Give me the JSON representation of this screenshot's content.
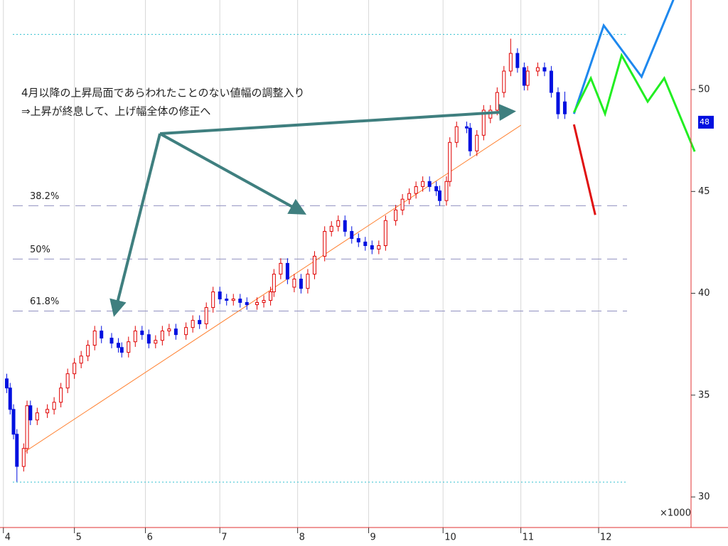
{
  "chart_data": {
    "type": "candlestick",
    "annotations": [
      "4月以降の上昇局面であらわれたことのない値幅の調整入り",
      "⇒上昇が終息して、上げ幅全体の修正へ"
    ],
    "unit_label": "×1000",
    "xlim": [
      -1,
      205
    ],
    "ylim": [
      28.5,
      54.4
    ],
    "xticks": [
      {
        "value": 0,
        "label": "4"
      },
      {
        "value": 21,
        "label": "5"
      },
      {
        "value": 42,
        "label": "6"
      },
      {
        "value": 64,
        "label": "7"
      },
      {
        "value": 87,
        "label": "8"
      },
      {
        "value": 108,
        "label": "9"
      },
      {
        "value": 130,
        "label": "10"
      },
      {
        "value": 153,
        "label": "11"
      },
      {
        "value": 176,
        "label": "12"
      }
    ],
    "yticks": [
      30,
      35,
      40,
      45,
      50
    ],
    "candles": {
      "up_color": "#e00000",
      "down_color": "#0010e0",
      "x": [
        1,
        2,
        3,
        4,
        6,
        7,
        8,
        10,
        13,
        15,
        17,
        19,
        21,
        23,
        25,
        27,
        29,
        32,
        34,
        35,
        37,
        39,
        41,
        43,
        45,
        47,
        49,
        51,
        54,
        56,
        58,
        60,
        62,
        64,
        66,
        68,
        70,
        72,
        75,
        77,
        79,
        80,
        82,
        84,
        86,
        88,
        90,
        92,
        95,
        97,
        99,
        101,
        103,
        105,
        107,
        109,
        111,
        113,
        116,
        118,
        120,
        122,
        124,
        126,
        128,
        129,
        131,
        132,
        134,
        137,
        138,
        140,
        142,
        144,
        146,
        148,
        150,
        152,
        154,
        155,
        158,
        160,
        162,
        164,
        166
      ],
      "open": [
        35.8,
        35.35,
        34.3,
        33.08,
        31.5,
        32.38,
        34.48,
        33.78,
        34.13,
        34.3,
        34.65,
        35.35,
        36.05,
        36.57,
        36.92,
        37.45,
        38.15,
        37.8,
        37.55,
        37.34,
        37.1,
        37.62,
        38.15,
        37.97,
        37.55,
        37.69,
        38.15,
        38.25,
        37.97,
        38.32,
        38.67,
        38.5,
        39.3,
        40.07,
        39.72,
        39.65,
        39.72,
        39.55,
        39.44,
        39.55,
        39.65,
        40.07,
        40.94,
        41.47,
        40.3,
        40.7,
        40.24,
        40.94,
        41.82,
        43.04,
        43.29,
        43.57,
        43.04,
        42.69,
        42.52,
        42.34,
        42.17,
        42.34,
        43.57,
        44.09,
        44.62,
        44.9,
        45.24,
        45.49,
        45.24,
        45.03,
        44.55,
        45.49,
        47.41,
        48.18,
        48.11,
        46.99,
        47.76,
        48.6,
        48.99,
        49.86,
        50.91,
        51.78,
        51.08,
        50.21,
        50.91,
        51.08,
        50.91,
        49.86,
        49.4
      ],
      "high": [
        36.05,
        35.6,
        34.55,
        33.33,
        32.63,
        34.73,
        34.73,
        34.38,
        34.55,
        34.9,
        35.6,
        36.3,
        36.82,
        37.17,
        37.7,
        38.4,
        38.4,
        38.05,
        37.8,
        37.59,
        37.87,
        38.4,
        38.4,
        38.22,
        37.94,
        38.4,
        38.5,
        38.5,
        38.57,
        38.92,
        38.92,
        39.55,
        40.32,
        40.32,
        39.97,
        39.97,
        39.97,
        39.8,
        39.8,
        39.9,
        40.32,
        41.19,
        41.72,
        41.72,
        40.95,
        40.95,
        41.19,
        42.07,
        43.29,
        43.54,
        43.82,
        43.82,
        43.29,
        42.94,
        42.77,
        42.59,
        42.59,
        43.82,
        44.34,
        44.87,
        45.15,
        45.49,
        45.74,
        45.74,
        45.49,
        45.28,
        45.74,
        47.66,
        48.43,
        48.43,
        48.36,
        48.01,
        49.24,
        49.24,
        50.11,
        51.16,
        52.5,
        52.03,
        51.33,
        51.16,
        51.33,
        51.33,
        51.16,
        50.11,
        49.9
      ],
      "low": [
        35.1,
        34.05,
        32.83,
        30.75,
        31.25,
        32.13,
        33.53,
        33.53,
        33.88,
        34.05,
        34.4,
        35.1,
        35.8,
        36.32,
        36.67,
        37.2,
        37.55,
        37.3,
        37.09,
        36.85,
        36.85,
        37.37,
        37.72,
        37.3,
        37.3,
        37.44,
        37.9,
        37.72,
        37.72,
        38.07,
        38.25,
        38.25,
        39.05,
        39.47,
        39.4,
        39.4,
        39.3,
        39.19,
        39.19,
        39.3,
        39.4,
        39.82,
        40.69,
        40.45,
        40.05,
        39.99,
        39.99,
        40.69,
        41.57,
        42.79,
        43.04,
        42.79,
        42.44,
        42.27,
        42.09,
        41.92,
        41.92,
        42.09,
        43.32,
        43.84,
        44.37,
        44.65,
        44.99,
        44.99,
        44.78,
        44.3,
        44.3,
        45.24,
        47.16,
        47.86,
        46.74,
        46.74,
        47.51,
        48.35,
        48.74,
        49.61,
        50.66,
        50.83,
        49.96,
        49.96,
        50.66,
        50.66,
        49.61,
        48.56,
        48.56
      ],
      "close": [
        35.35,
        34.3,
        33.08,
        31.5,
        32.38,
        34.48,
        33.78,
        34.13,
        34.3,
        34.65,
        35.35,
        36.05,
        36.57,
        36.92,
        37.45,
        38.15,
        37.8,
        37.55,
        37.34,
        37.1,
        37.62,
        38.15,
        37.97,
        37.55,
        37.69,
        38.15,
        38.25,
        37.97,
        38.32,
        38.67,
        38.5,
        39.3,
        40.07,
        39.72,
        39.65,
        39.72,
        39.55,
        39.44,
        39.55,
        39.65,
        40.07,
        40.94,
        41.47,
        40.7,
        40.7,
        40.24,
        40.94,
        41.82,
        43.04,
        43.29,
        43.57,
        43.04,
        42.69,
        42.52,
        42.34,
        42.17,
        42.34,
        43.57,
        44.09,
        44.62,
        44.9,
        45.24,
        45.49,
        45.24,
        45.03,
        44.55,
        45.49,
        47.41,
        48.18,
        48.11,
        46.99,
        47.76,
        48.99,
        48.99,
        49.86,
        50.91,
        51.78,
        51.08,
        50.21,
        50.91,
        51.08,
        50.91,
        49.86,
        48.81,
        48.81
      ]
    },
    "series": [
      {
        "color": "#1e88ee",
        "x": [
          168.7,
          177.5,
          188.7,
          198.1
        ],
        "values": [
          48.81,
          53.15,
          50.63,
          54.41
        ]
      },
      {
        "color": "#22ee22",
        "x": [
          168.7,
          173.7,
          177.9,
          182.8,
          190.5,
          195.4,
          204.4
        ],
        "values": [
          48.88,
          50.56,
          48.81,
          51.68,
          49.41,
          50.56,
          46.96
        ]
      },
      {
        "color": "#e01010",
        "x": [
          168.7,
          175.0
        ],
        "values": [
          48.29,
          43.85
        ]
      }
    ],
    "trendline": {
      "color": "#ff8030",
      "x": [
        5.9,
        153
      ],
      "values": [
        32.17,
        48.25
      ]
    },
    "range_lines": {
      "color": "#30c0d0",
      "values": [
        52.71,
        30.73
      ]
    },
    "fib_levels": {
      "color": "#9090c0",
      "levels": [
        {
          "label": "38.2%",
          "value": 44.3
        },
        {
          "label": "50%",
          "value": 41.68
        },
        {
          "label": "61.8%",
          "value": 39.13
        }
      ]
    },
    "last_price": {
      "value": 48.4,
      "label": "48",
      "color": "#0010e0"
    }
  }
}
